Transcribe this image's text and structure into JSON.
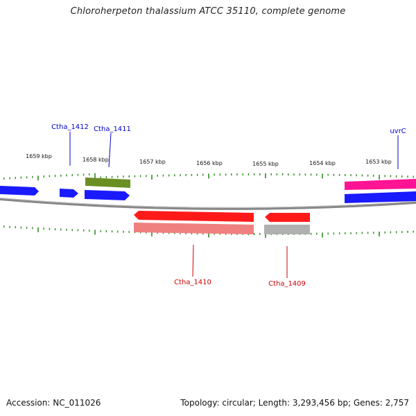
{
  "title": "Chloroherpeton thalassium ATCC 35110, complete genome",
  "footer": {
    "accession": "Accession: NC_011026",
    "stats": "Topology: circular; Length: 3,293,456 bp; Genes: 2,757"
  },
  "colors": {
    "tick": "#2e8b22",
    "backbone": "#888888",
    "forward_label": "#0000cc",
    "reverse_label": "#cc0000",
    "blue_gene": "#1a1aff",
    "olive_gene": "#6b8e23",
    "pink_gene": "#ff1493",
    "red_gene": "#ff1a1a",
    "salmon_gene": "#f08080",
    "grey_gene": "#b0b0b0"
  },
  "scale": {
    "unit": "kbp",
    "labels": [
      "1659 kbp",
      "1658 kbp",
      "1657 kbp",
      "1656 kbp",
      "1655 kbp",
      "1654 kbp",
      "1653 kbp"
    ]
  },
  "gene_labels": [
    {
      "name": "Ctha_1412",
      "strand": "forward"
    },
    {
      "name": "Ctha_1411",
      "strand": "forward"
    },
    {
      "name": "uvrC",
      "strand": "forward"
    },
    {
      "name": "Ctha_1410",
      "strand": "reverse"
    },
    {
      "name": "Ctha_1409",
      "strand": "reverse"
    }
  ]
}
